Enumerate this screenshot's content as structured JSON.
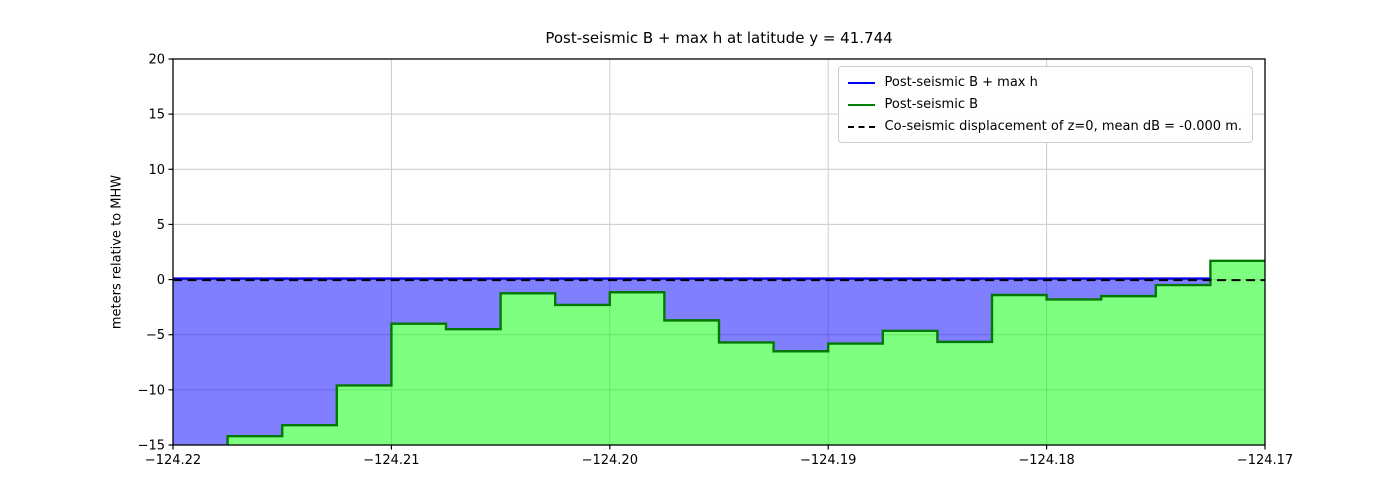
{
  "chart_data": {
    "type": "area",
    "title": "Post-seismic B + max h at latitude y = 41.744",
    "xlabel": "",
    "ylabel": "meters relative to MHW",
    "xlim": [
      -124.22,
      -124.17
    ],
    "ylim": [
      -15,
      20
    ],
    "grid": true,
    "legend_position": "upper right",
    "x_tick_values": [
      -124.22,
      -124.21,
      -124.2,
      -124.19,
      -124.18,
      -124.17
    ],
    "x_tick_labels": [
      "−124.22",
      "−124.21",
      "−124.20",
      "−124.19",
      "−124.18",
      "−124.17"
    ],
    "y_tick_values": [
      20,
      15,
      10,
      5,
      0,
      -5,
      -10,
      -15
    ],
    "y_tick_labels": [
      "20",
      "15",
      "10",
      "5",
      "0",
      "−5",
      "−10",
      "−15"
    ],
    "step_x_edges": [
      -124.22,
      -124.2175,
      -124.215,
      -124.2125,
      -124.21,
      -124.2075,
      -124.205,
      -124.2025,
      -124.2,
      -124.1975,
      -124.195,
      -124.1925,
      -124.19,
      -124.1875,
      -124.185,
      -124.1825,
      -124.18,
      -124.1775,
      -124.175,
      -124.1725,
      -124.17
    ],
    "post_seismic_B": [
      -15.6,
      -14.2,
      -13.2,
      -9.6,
      -4.0,
      -4.5,
      -1.25,
      -2.3,
      -1.15,
      -3.7,
      -5.7,
      -6.5,
      -5.8,
      -4.65,
      -5.65,
      -1.4,
      -1.8,
      -1.5,
      -0.5,
      1.7
    ],
    "B_plus_maxh_level": 0.0,
    "B_plus_maxh_x_end": -124.1725,
    "coseismic_level": 0.0,
    "legend": [
      {
        "label": "Post-seismic B + max h",
        "color": "#0000ee",
        "style": "solid"
      },
      {
        "label": "Post-seismic B",
        "color": "#008000",
        "style": "solid"
      },
      {
        "label": "Co-seismic displacement of z=0, mean dB = -0.000 m.",
        "color": "#000000",
        "style": "dashed"
      }
    ],
    "colors": {
      "blue_fill": "rgba(0,0,255,0.5)",
      "green_fill": "rgba(0,255,0,0.5)",
      "green_line": "#047804",
      "blue_line": "#0000ee",
      "dashed_line": "#000000",
      "grid": "#cccccc",
      "axis": "#000000"
    }
  }
}
